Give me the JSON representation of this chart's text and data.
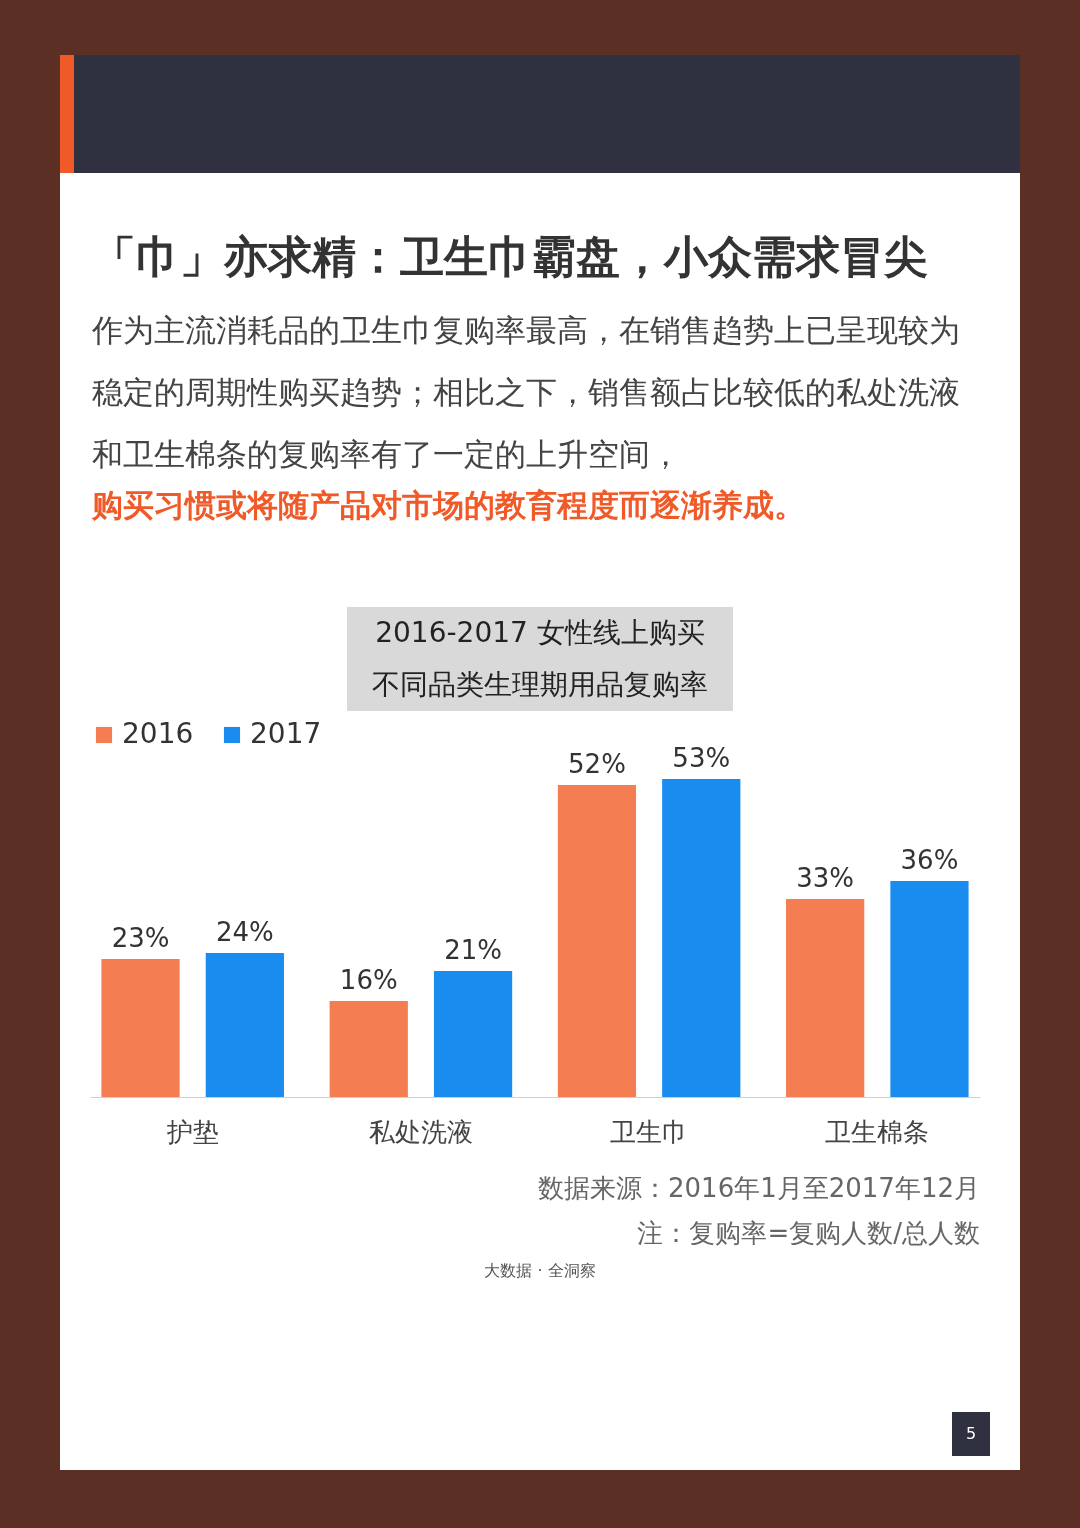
{
  "chart_data": {
    "type": "bar",
    "title": "「巾」亦求精：卫生巾霸盘，小众需求冒尖",
    "subtitle": "作为主流消耗品的卫生巾复购率最高，在销售趋势上已呈现较为稳定的周期性购买趋势；相比之下，销售额占比较低的私处洗液和卫生棉条的复购率有了一定的上升空间，",
    "categories": [
      "护垫",
      "私处洗液",
      "卫生巾",
      "卫生棉条"
    ],
    "series": [
      {
        "name": "2016",
        "color": "#f47d51",
        "values": [
          23,
          16,
          52,
          33
        ],
        "value_labels": [
          "23%",
          "16%",
          "52%",
          "33%"
        ]
      },
      {
        "name": "2017",
        "color": "#1a8cf0",
        "values": [
          24,
          21,
          53,
          36
        ],
        "value_labels": [
          "24%",
          "21%",
          "53%",
          "36%"
        ]
      }
    ],
    "legend": "top",
    "grid": false,
    "annotations": [
      "购买习惯或将随产品对市场的教育程度而逐渐养成。",
      "2016-2017 女性线上购买不同品类生理期用品复购率",
      "数据来源：2016年1月至2017年12月",
      "注：复购率=复购人数/总人数",
      "大数据 · 全洞察",
      "5"
    ]
  }
}
